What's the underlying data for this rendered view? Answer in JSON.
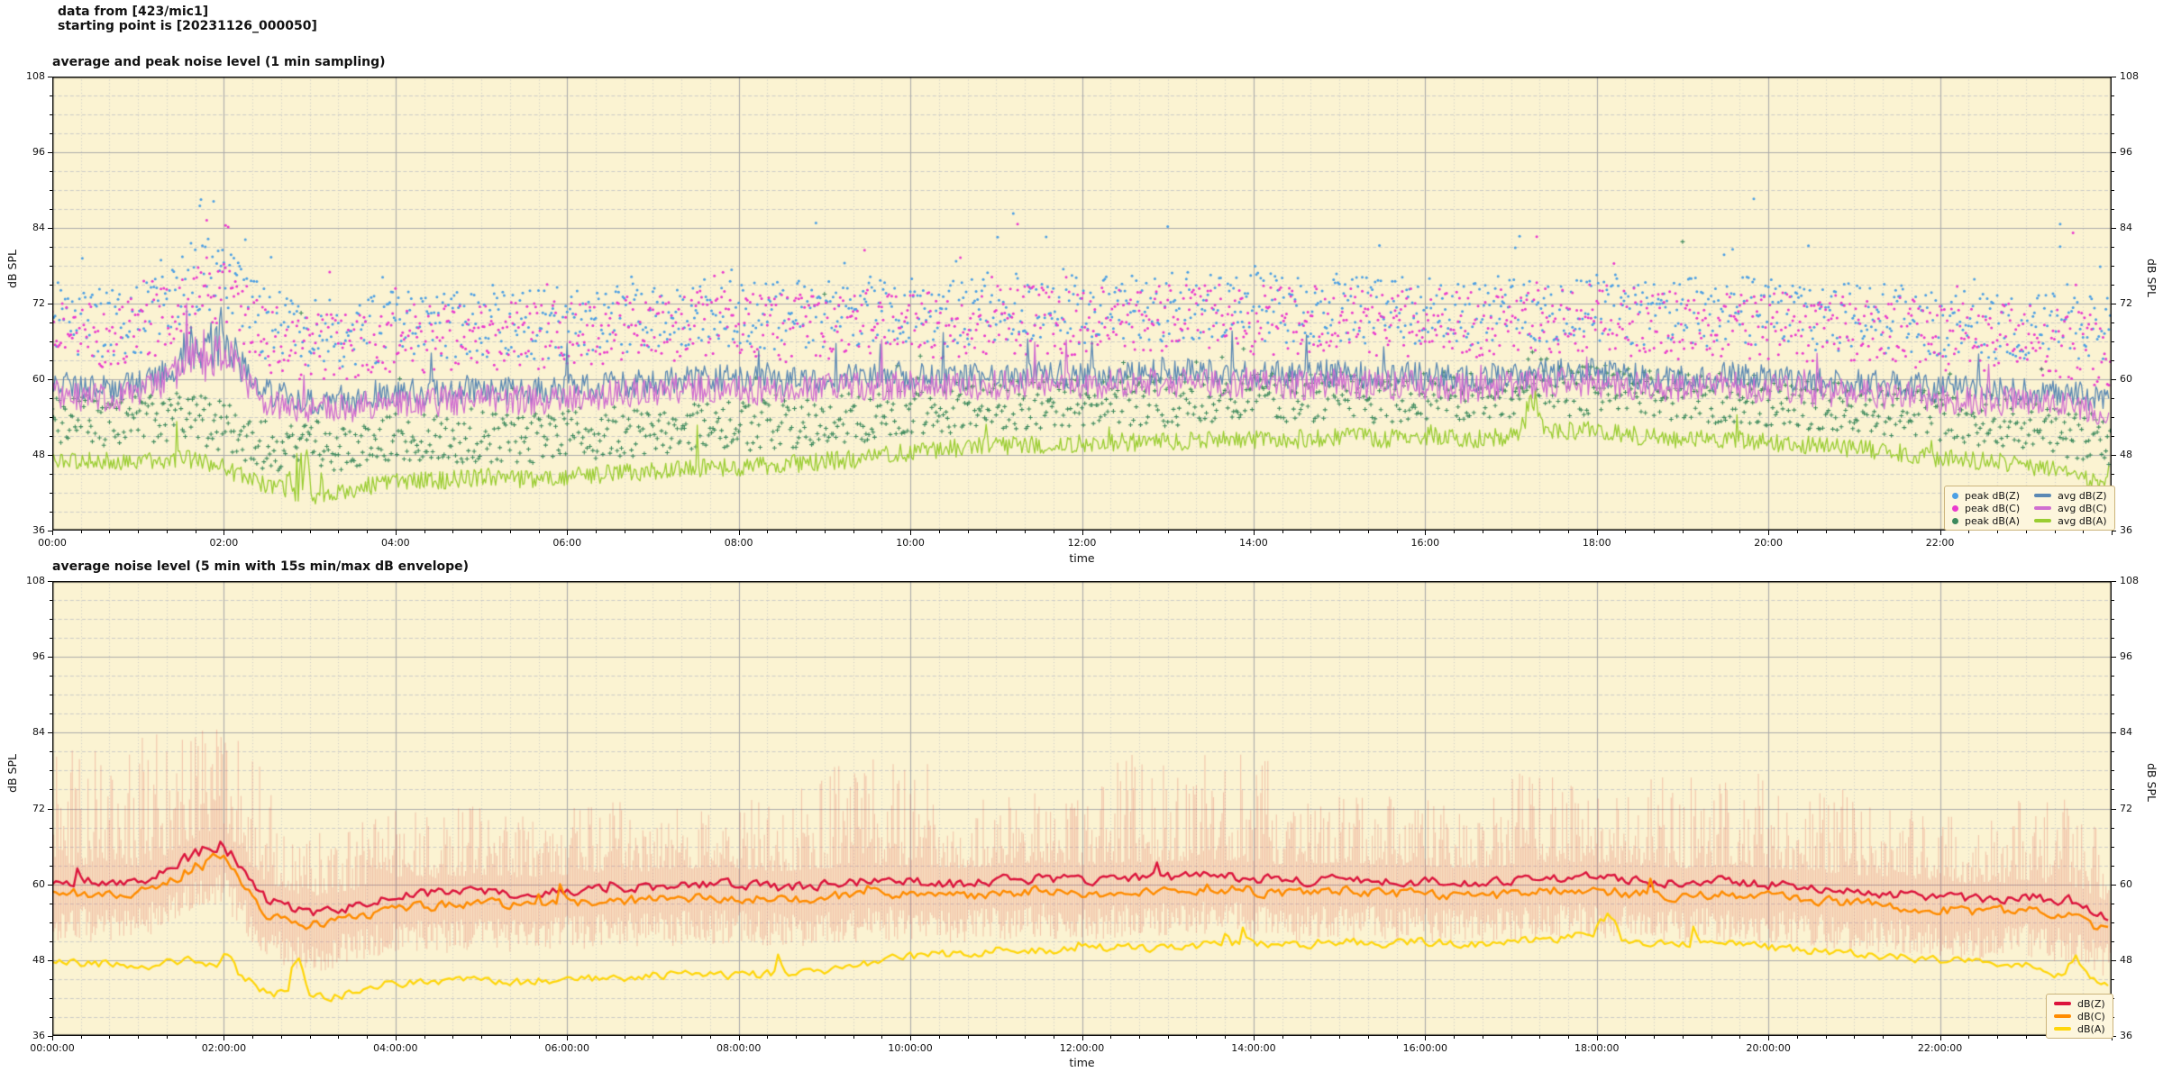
{
  "header": {
    "line1": "data from [423/mic1]",
    "line2": "starting point is [20231126_000050]"
  },
  "palette": {
    "plot_bg": "#fbf3d2",
    "grid_major": "#ababab",
    "grid_minor": "#c6c6c6",
    "spine": "#000000",
    "legend_bg": "#fdf6dd",
    "legend_border": "#ccb47c",
    "scatter_blue": "#4da0e4",
    "scatter_magenta": "#ea3bce",
    "scatter_green": "#3d8a5d",
    "line_blue": "#5b89b4",
    "line_violet": "#d06fd0",
    "line_yellowgreen": "#9acd32",
    "line_crimson": "#dc143c",
    "line_orange": "#ff8c00",
    "line_yellow": "#ffd60a",
    "envelope": "rgba(220,70,60,0.26)"
  },
  "chart_data": [
    {
      "type": "line+scatter",
      "title": "average and peak noise level (1 min sampling)",
      "xlabel": "time",
      "ylabel": "dB SPL",
      "ylim": [
        36,
        108
      ],
      "xlim_hours": [
        0,
        24
      ],
      "x_major_step_h": 2,
      "x_minor_step_min": 20,
      "y_major_ticks": [
        108,
        96,
        84,
        72,
        60,
        48,
        36
      ],
      "y_minor_step_db": 3,
      "x_major_tick_labels": [
        "00:00",
        "02:00",
        "04:00",
        "06:00",
        "08:00",
        "10:00",
        "12:00",
        "14:00",
        "16:00",
        "18:00",
        "20:00",
        "22:00"
      ],
      "anchor_step_h": 0.5,
      "series": [
        {
          "name": "avg dB(Z)",
          "color": "#5b89b4",
          "width": 1.3,
          "noise_amp": 2.3,
          "spike_chance": 0.012,
          "spike_max": 8,
          "anchors_db": [
            59.5,
            58.5,
            59,
            62.5,
            64.5,
            58,
            56.5,
            57,
            58,
            58,
            58.5,
            58,
            58.5,
            59,
            59.5,
            60,
            60,
            59.5,
            60,
            60.5,
            60.5,
            60,
            60.5,
            61,
            60.5,
            61,
            61,
            61,
            61,
            60.5,
            61,
            60.5,
            60.5,
            60,
            60.5,
            61,
            61,
            60.5,
            60,
            60.5,
            60,
            59.5,
            59.5,
            59,
            58.5,
            58,
            58,
            57.5,
            57
          ],
          "events": [
            {
              "start_h": 1.35,
              "end_h": 2.25,
              "extra_db": 2.0,
              "extra_noise": 2.0
            }
          ]
        },
        {
          "name": "avg dB(C)",
          "color": "#d06fd0",
          "width": 1.3,
          "noise_amp": 2.4,
          "spike_chance": 0.01,
          "spike_max": 7,
          "anchors_db": [
            58,
            57,
            57.5,
            61,
            63,
            56.5,
            55,
            55.5,
            56.5,
            56.5,
            57,
            56.5,
            57,
            57.5,
            58,
            58.5,
            58.5,
            58,
            58.5,
            59,
            59,
            58.5,
            59,
            59.5,
            59,
            59.5,
            59.5,
            59.5,
            59.5,
            59,
            59.5,
            59,
            59,
            58.5,
            59,
            59.5,
            59.5,
            59,
            58.5,
            59,
            58.5,
            58,
            58,
            57.5,
            57,
            56.5,
            56.5,
            55.5,
            54
          ],
          "events": [
            {
              "start_h": 1.35,
              "end_h": 2.25,
              "extra_db": 1.8,
              "extra_noise": 2.0
            }
          ]
        },
        {
          "name": "avg dB(A)",
          "color": "#9acd32",
          "width": 1.3,
          "noise_amp": 1.5,
          "spike_chance": 0.008,
          "spike_max": 7,
          "anchors_db": [
            47.5,
            47,
            47,
            47.5,
            46,
            43,
            42,
            42.5,
            44,
            44,
            44.5,
            44,
            44.5,
            45,
            45.5,
            46,
            46,
            46.5,
            47,
            47.5,
            48.5,
            49,
            49.5,
            49.5,
            50,
            50,
            50,
            50.5,
            50.5,
            50.5,
            51,
            50.5,
            51,
            50.5,
            51,
            51.5,
            52,
            51,
            50.5,
            50.5,
            50,
            49.5,
            49,
            48.5,
            47.5,
            47,
            46.5,
            45,
            43.5
          ],
          "events": [
            {
              "start_h": 2.7,
              "end_h": 3.2,
              "extra_db": 2.5,
              "extra_noise": 3.0
            },
            {
              "start_h": 17.1,
              "end_h": 17.4,
              "extra_db": 4.0,
              "extra_noise": 2.0
            }
          ]
        }
      ],
      "scatter": [
        {
          "name": "peak dB(Z)",
          "color": "#4da0e4",
          "marker": "dot",
          "ref": 0,
          "offset": 10.5,
          "spread": 5.5,
          "outlier_chance": 0.045,
          "outlier_max": 9,
          "step_min": 1,
          "extra_points": [
            [
              1.72,
              87.5
            ],
            [
              1.88,
              88.2
            ],
            [
              8.9,
              84.8
            ],
            [
              11.2,
              86.3
            ],
            [
              13.0,
              84.2
            ],
            [
              19.83,
              88.6
            ],
            [
              23.4,
              84.6
            ]
          ]
        },
        {
          "name": "peak dB(C)",
          "color": "#ea3bce",
          "marker": "dot",
          "ref": 1,
          "offset": 10.0,
          "spread": 5.5,
          "outlier_chance": 0.04,
          "outlier_max": 8,
          "step_min": 1,
          "extra_points": [
            [
              1.8,
              85.2
            ],
            [
              2.02,
              84.4
            ],
            [
              11.25,
              84.6
            ],
            [
              17.3,
              82.6
            ],
            [
              23.55,
              83.2
            ]
          ]
        },
        {
          "name": "peak dB(A)",
          "color": "#3d8a5d",
          "marker": "plus",
          "ref": 2,
          "offset": 6.5,
          "spread": 4.0,
          "outlier_chance": 0.03,
          "outlier_max": 7,
          "step_min": 1,
          "extra_points": [
            [
              2.9,
              70.5
            ],
            [
              9.0,
              73.5
            ],
            [
              19.0,
              81.8
            ]
          ]
        }
      ],
      "legend": {
        "columns": [
          [
            {
              "label": "peak dB(Z)",
              "swatch": "dot",
              "color": "#4da0e4"
            },
            {
              "label": "peak dB(C)",
              "swatch": "dot",
              "color": "#ea3bce"
            },
            {
              "label": "peak dB(A)",
              "swatch": "dot",
              "color": "#3d8a5d"
            }
          ],
          [
            {
              "label": "avg dB(Z)",
              "swatch": "line",
              "color": "#5b89b4"
            },
            {
              "label": "avg dB(C)",
              "swatch": "line",
              "color": "#d06fd0"
            },
            {
              "label": "avg dB(A)",
              "swatch": "line",
              "color": "#9acd32"
            }
          ]
        ]
      }
    },
    {
      "type": "line+envelope",
      "title": "average noise level (5 min with 15s min/max dB envelope)",
      "xlabel": "time",
      "ylabel": "dB SPL",
      "ylim": [
        36,
        108
      ],
      "xlim_hours": [
        0,
        24
      ],
      "x_major_step_h": 2,
      "x_minor_step_min": 20,
      "y_major_ticks": [
        108,
        96,
        84,
        72,
        60,
        48,
        36
      ],
      "y_minor_step_db": 3,
      "x_major_tick_labels": [
        "00:00:00",
        "02:00:00",
        "04:00:00",
        "06:00:00",
        "08:00:00",
        "10:00:00",
        "12:00:00",
        "14:00:00",
        "16:00:00",
        "18:00:00",
        "20:00:00",
        "22:00:00"
      ],
      "anchor_step_h": 0.5,
      "envelope": {
        "color": "rgba(220,70,60,0.26)",
        "up_base": 2.5,
        "up_tail": 11,
        "down_base": 2,
        "down_extra": 5.5,
        "tall_periods": [
          {
            "start_h": 0,
            "end_h": 2.6,
            "up_tail": 20
          },
          {
            "start_h": 8.7,
            "end_h": 10.3,
            "up_tail": 17
          },
          {
            "start_h": 12.2,
            "end_h": 14.2,
            "up_tail": 17
          },
          {
            "start_h": 17.0,
            "end_h": 21.0,
            "up_tail": 15
          },
          {
            "start_h": 22.7,
            "end_h": 23.9,
            "up_tail": 14
          }
        ]
      },
      "series": [
        {
          "name": "dB(Z)",
          "color": "#dc143c",
          "width": 2.4,
          "noise_amp": 1.15,
          "spike_chance": 0.01,
          "spike_max": 3,
          "anchors_db": [
            60.5,
            60.5,
            60.5,
            63,
            65.5,
            57.5,
            55.5,
            56.5,
            58.5,
            58.5,
            59,
            58.5,
            59,
            59.5,
            59.5,
            60,
            60,
            59.5,
            60,
            60.5,
            60.5,
            60,
            60.5,
            61,
            60.5,
            61,
            61,
            61.5,
            61,
            60.5,
            61,
            60.5,
            60.5,
            60,
            60.5,
            61,
            61,
            60.5,
            60,
            60.5,
            60,
            59.5,
            59,
            58.5,
            58,
            57.5,
            58,
            57.5,
            54.5
          ],
          "events": [
            {
              "start_h": 1.35,
              "end_h": 2.25,
              "extra_db": 1.2,
              "extra_noise": 0.5
            }
          ]
        },
        {
          "name": "dB(C)",
          "color": "#ff8c00",
          "width": 2.4,
          "noise_amp": 1.15,
          "spike_chance": 0.01,
          "spike_max": 3,
          "anchors_db": [
            58.5,
            58.5,
            58.5,
            61,
            63.5,
            55.5,
            53.5,
            54.5,
            56.5,
            56.5,
            57,
            56.5,
            57,
            57.5,
            57.5,
            58,
            58,
            57.5,
            58,
            58.5,
            58.5,
            58,
            58.5,
            59,
            58.5,
            59,
            59,
            59.5,
            59,
            58.5,
            59,
            58.5,
            58.5,
            58,
            58.5,
            59,
            59,
            58.5,
            58,
            58.5,
            58,
            57.5,
            57,
            56.5,
            56,
            55.5,
            56,
            55,
            52.5
          ],
          "events": [
            {
              "start_h": 1.35,
              "end_h": 2.25,
              "extra_db": 0.8,
              "extra_noise": 0.4
            }
          ]
        },
        {
          "name": "dB(A)",
          "color": "#ffd60a",
          "width": 2.2,
          "noise_amp": 1.0,
          "spike_chance": 0.008,
          "spike_max": 3,
          "anchors_db": [
            47.5,
            47.5,
            47,
            48,
            47,
            43,
            42,
            42.5,
            44.5,
            44.5,
            45,
            44.5,
            45,
            45,
            45.5,
            46,
            45.5,
            46,
            46.5,
            47.5,
            48.5,
            49,
            49.5,
            49.5,
            50,
            50,
            50,
            50.5,
            50.5,
            50.5,
            51,
            50.5,
            51,
            50.5,
            51,
            51.5,
            52,
            51,
            50.5,
            51,
            50,
            49.5,
            49,
            48.5,
            48,
            47.5,
            47,
            45.5,
            44
          ],
          "events": [
            {
              "start_h": 1.9,
              "end_h": 2.15,
              "extra_db": 2.0,
              "extra_noise": 0.5
            },
            {
              "start_h": 2.74,
              "end_h": 2.98,
              "extra_db": 6.0,
              "extra_noise": 1.0
            },
            {
              "start_h": 17.95,
              "end_h": 18.3,
              "extra_db": 3.0,
              "extra_noise": 0.5
            },
            {
              "start_h": 23.45,
              "end_h": 23.75,
              "extra_db": 3.0,
              "extra_noise": 0.5
            }
          ]
        }
      ],
      "legend": {
        "columns": [
          [
            {
              "label": "dB(Z)",
              "swatch": "line",
              "color": "#dc143c"
            },
            {
              "label": "dB(C)",
              "swatch": "line",
              "color": "#ff8c00"
            },
            {
              "label": "dB(A)",
              "swatch": "line",
              "color": "#ffd60a"
            }
          ]
        ]
      }
    }
  ]
}
